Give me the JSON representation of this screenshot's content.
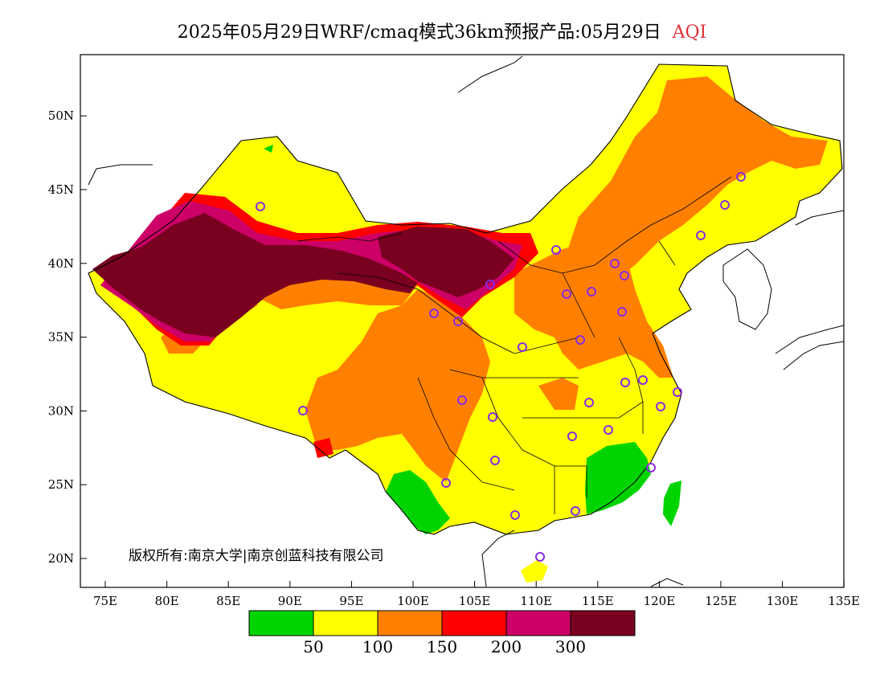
{
  "title": {
    "main": "2025年05月29日WRF/cmaq模式36km预报产品:05月29日",
    "variable": "AQI",
    "variable_color": "#e0303a"
  },
  "copyright": "版权所有:南京大学|南京创蓝科技有限公司",
  "axes": {
    "lon_ticks": [
      "75E",
      "80E",
      "85E",
      "90E",
      "95E",
      "100E",
      "105E",
      "110E",
      "115E",
      "120E",
      "125E",
      "130E",
      "135E"
    ],
    "lat_ticks": [
      "20N",
      "25N",
      "30N",
      "35N",
      "40N",
      "45N",
      "50N"
    ]
  },
  "legend": {
    "colors": [
      "#00d400",
      "#ffff00",
      "#ff8000",
      "#ff0000",
      "#cc0066",
      "#7a0020"
    ],
    "labels": [
      "50",
      "100",
      "150",
      "200",
      "300"
    ]
  },
  "palette": {
    "good": "#00d400",
    "moderate": "#ffff00",
    "usg": "#ff8000",
    "unhealthy": "#ff0000",
    "very_unhealthy": "#cc0066",
    "hazardous": "#7a0020",
    "marker": "#8a2be2"
  }
}
